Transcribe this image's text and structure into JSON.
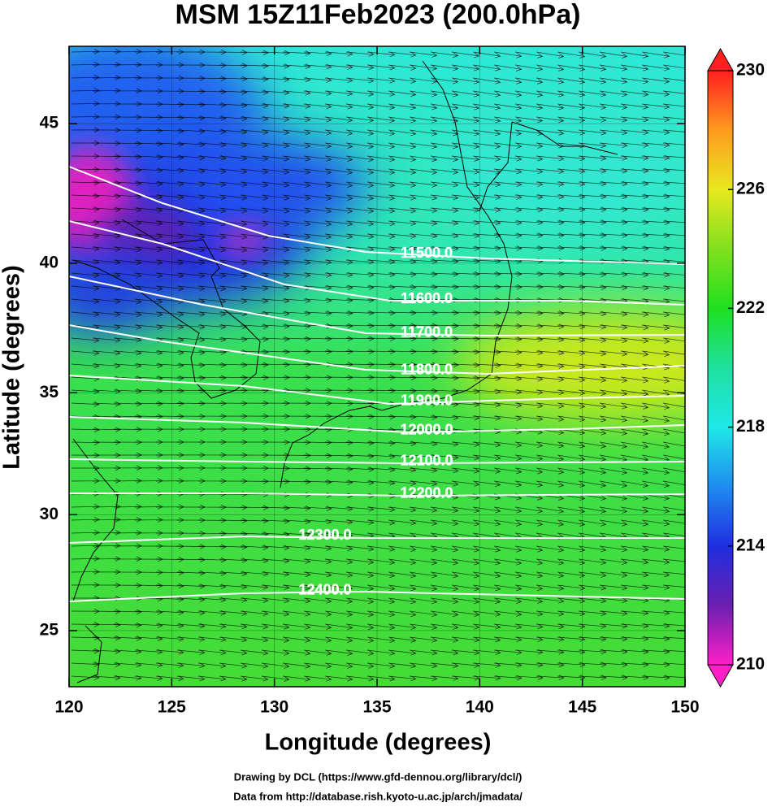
{
  "chart_data": {
    "type": "map",
    "title": "MSM 15Z11Feb2023 (200.0hPa)",
    "projection": "mercator",
    "xlabel": "Longitude (degrees)",
    "ylabel": "Latitude  (degrees)",
    "xlim": [
      120,
      150
    ],
    "ylim": [
      22.5,
      47.6
    ],
    "xticks": [
      120,
      125,
      130,
      135,
      140,
      145,
      150
    ],
    "yticks": [
      25,
      30,
      35,
      40,
      45
    ],
    "colorbar": {
      "lim": [
        210,
        230
      ],
      "ticks": [
        210,
        214,
        218,
        222,
        226,
        230
      ],
      "colors": [
        "#ff1fc8",
        "#6a1fb0",
        "#1f2ee0",
        "#1f8cf0",
        "#1fe8e8",
        "#1fe0a0",
        "#1fe01f",
        "#80e01f",
        "#e8e81f",
        "#ff9a1f",
        "#ff1f1f"
      ]
    },
    "contours": [
      {
        "value": 11500,
        "label": "11500.0"
      },
      {
        "value": 11600,
        "label": "11600.0"
      },
      {
        "value": 11700,
        "label": "11700.0"
      },
      {
        "value": 11800,
        "label": "11800.0"
      },
      {
        "value": 11900,
        "label": "11900.0"
      },
      {
        "value": 12000,
        "label": "12000.0"
      },
      {
        "value": 12100,
        "label": "12100.0"
      },
      {
        "value": 12200,
        "label": "12200.0"
      },
      {
        "value": 12300,
        "label": "12300.0"
      },
      {
        "value": 12400,
        "label": "12400.0"
      }
    ],
    "credits": [
      "Drawing by DCL (https://www.gfd-dennou.org/library/dcl/)",
      "Data from http://database.rish.kyoto-u.ac.jp/arch/jmadata/"
    ]
  }
}
